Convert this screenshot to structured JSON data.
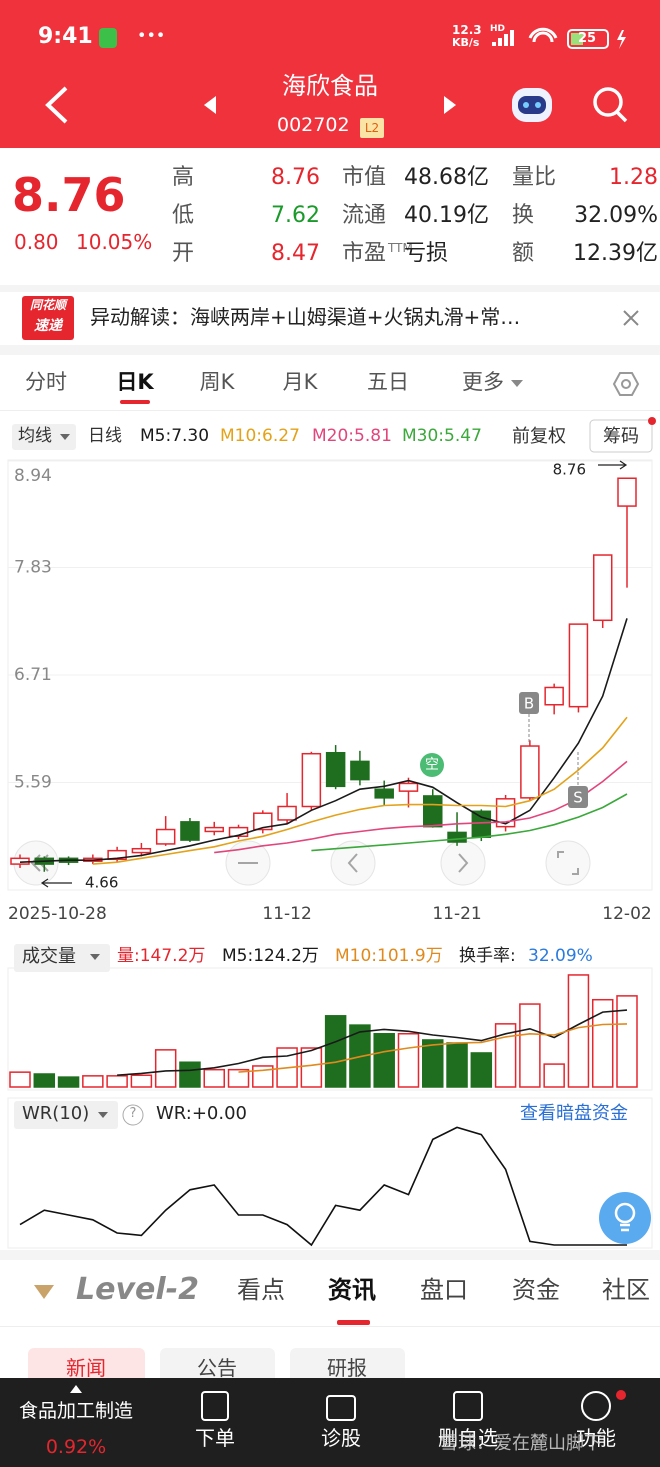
{
  "status_bar": {
    "time": "9:41",
    "speed": "12.3",
    "speed_unit": "KB/s",
    "network": "HD",
    "battery": "25"
  },
  "header": {
    "name": "海欣食品",
    "code": "002702",
    "badge": "L2"
  },
  "quote": {
    "price": "8.76",
    "change": "0.80",
    "change_pct": "10.05%",
    "stats": [
      [
        {
          "label": "高",
          "value": "8.76",
          "color": "#e5262e"
        },
        {
          "label": "市值",
          "value": "48.68亿"
        },
        {
          "label": "量比",
          "value": "1.28",
          "color": "#e5262e"
        }
      ],
      [
        {
          "label": "低",
          "value": "7.62",
          "color": "#1a9a2a"
        },
        {
          "label": "流通",
          "value": "40.19亿"
        },
        {
          "label": "换",
          "value": "32.09%"
        }
      ],
      [
        {
          "label": "开",
          "value": "8.47",
          "color": "#e5262e"
        },
        {
          "label": "市盈",
          "sup": "TTM",
          "value": "亏损"
        },
        {
          "label": "额",
          "value": "12.39亿"
        }
      ]
    ]
  },
  "news_ticker": {
    "logo_top": "同花顺",
    "logo_bottom": "速递",
    "text": "异动解读：海峡两岸+山姆渠道+火锅丸滑+常…"
  },
  "chart_tabs": {
    "items": [
      "分时",
      "日K",
      "周K",
      "月K",
      "五日",
      "更多"
    ],
    "active": "日K"
  },
  "kline": {
    "type": "candlestick",
    "toolbar": {
      "ma_button": "均线",
      "period": "日线",
      "adjust": "前复权",
      "chips": "筹码"
    },
    "categories": [
      "2025-10-28",
      null,
      null,
      null,
      null,
      null,
      null,
      null,
      null,
      null,
      null,
      "11-12",
      null,
      null,
      null,
      null,
      null,
      null,
      "11-21",
      null,
      null,
      null,
      null,
      null,
      null,
      "12-02"
    ],
    "open": [
      4.74,
      4.8,
      4.8,
      4.77,
      4.79,
      4.86,
      4.95,
      5.18,
      5.08,
      5.03,
      5.1,
      5.2,
      5.34,
      5.9,
      5.81,
      5.52,
      5.5,
      5.45,
      5.07,
      5.29,
      5.13,
      5.43,
      6.4,
      6.38,
      7.28,
      8.47
    ],
    "high": [
      4.84,
      4.82,
      4.82,
      4.84,
      4.92,
      4.96,
      5.24,
      5.22,
      5.18,
      5.15,
      5.3,
      5.48,
      5.91,
      5.98,
      5.92,
      5.61,
      5.64,
      5.52,
      5.28,
      5.31,
      5.46,
      6.03,
      6.62,
      7.24,
      7.96,
      8.76
    ],
    "low": [
      4.7,
      4.66,
      4.73,
      4.74,
      4.76,
      4.82,
      4.93,
      4.97,
      5.04,
      5.0,
      5.06,
      5.16,
      5.3,
      5.52,
      5.56,
      5.35,
      5.33,
      5.12,
      4.93,
      4.98,
      5.08,
      5.4,
      6.3,
      6.32,
      7.2,
      7.62
    ],
    "close": [
      4.8,
      4.74,
      4.76,
      4.8,
      4.88,
      4.9,
      5.1,
      4.99,
      5.12,
      5.12,
      5.27,
      5.34,
      5.89,
      5.55,
      5.62,
      5.43,
      5.58,
      5.13,
      4.97,
      5.02,
      5.42,
      5.97,
      6.58,
      7.24,
      7.96,
      8.76
    ],
    "up_color": "#e5262e",
    "down_color": "#1f6e1f",
    "ylim": [
      4.47,
      8.95
    ],
    "yticks": [
      8.94,
      7.83,
      6.71,
      5.59
    ],
    "grid": true,
    "series": [
      {
        "name": "M5:7.30",
        "color": "#1a1a1a",
        "values": [
          4.76,
          4.77,
          4.78,
          4.78,
          4.8,
          4.83,
          4.88,
          4.93,
          4.99,
          5.04,
          5.12,
          5.16,
          5.3,
          5.4,
          5.52,
          5.55,
          5.61,
          5.54,
          5.38,
          5.23,
          5.16,
          5.3,
          5.64,
          6.0,
          6.49,
          7.3
        ]
      },
      {
        "name": "M10:6.27",
        "color": "#e3a21a",
        "values": [
          null,
          null,
          null,
          4.74,
          4.76,
          4.8,
          4.84,
          4.88,
          4.92,
          4.98,
          5.03,
          5.1,
          5.18,
          5.25,
          5.31,
          5.35,
          5.36,
          5.36,
          5.35,
          5.35,
          5.34,
          5.4,
          5.52,
          5.72,
          5.95,
          6.27
        ]
      },
      {
        "name": "M20:5.81",
        "color": "#e2457c",
        "values": [
          null,
          null,
          null,
          null,
          null,
          null,
          null,
          null,
          4.86,
          4.89,
          4.93,
          4.96,
          5.0,
          5.05,
          5.08,
          5.11,
          5.13,
          5.14,
          5.16,
          5.17,
          5.18,
          5.22,
          5.3,
          5.42,
          5.6,
          5.81
        ]
      },
      {
        "name": "M30:5.47",
        "color": "#3aa83a",
        "values": [
          null,
          null,
          null,
          null,
          null,
          null,
          null,
          null,
          null,
          null,
          null,
          null,
          4.88,
          4.9,
          4.92,
          4.94,
          4.96,
          4.98,
          5.0,
          5.02,
          5.05,
          5.09,
          5.15,
          5.23,
          5.33,
          5.47
        ]
      }
    ],
    "markers": {
      "buy": "B",
      "sell": "S",
      "short": "空"
    },
    "high_label": "8.76",
    "low_label": "4.66"
  },
  "volume": {
    "type": "bar",
    "selector": "成交量",
    "current_label": "量:147.2万",
    "current_color": "#e5262e",
    "turnover_label": "换手率:",
    "turnover_value": "32.09%",
    "ylim": [
      0,
      189
    ],
    "values": [
      24,
      21,
      16,
      18,
      18,
      19,
      60,
      40,
      28,
      28,
      34,
      63,
      63,
      115,
      100,
      86,
      86,
      76,
      71,
      55,
      102,
      134,
      37,
      181,
      141,
      147.2
    ],
    "series": [
      {
        "name": "M5:124.2万",
        "color": "#1a1a1a",
        "values": [
          null,
          null,
          null,
          null,
          19,
          22,
          26,
          27,
          31,
          38,
          48,
          50,
          59,
          73,
          89,
          93,
          90,
          84,
          80,
          75,
          86,
          94,
          80,
          101,
          121,
          124.2
        ]
      },
      {
        "name": "M10:101.9万",
        "color": "#e08a1e",
        "values": [
          null,
          null,
          null,
          null,
          null,
          null,
          null,
          null,
          null,
          24,
          27,
          31,
          35,
          40,
          49,
          57,
          63,
          68,
          71,
          72,
          81,
          86,
          84,
          96,
          101,
          101.9
        ]
      }
    ]
  },
  "wr": {
    "type": "line",
    "selector": "WR(10)",
    "help": "?",
    "legend": "WR:+0.00",
    "link": "查看暗盘资金",
    "ylim": [
      0,
      100
    ],
    "color": "#111",
    "values": [
      17,
      29,
      25,
      21,
      10,
      8,
      29,
      46,
      50,
      25,
      25,
      17,
      0,
      33,
      29,
      50,
      42,
      88,
      98,
      92,
      63,
      3,
      0,
      0,
      0,
      0
    ]
  },
  "bottom_tabs": {
    "logo": "Level-2",
    "items": [
      "看点",
      "资讯",
      "盘口",
      "资金",
      "社区"
    ],
    "active": "资讯"
  },
  "sub_tabs": {
    "items": [
      "新闻",
      "公告",
      "研报"
    ],
    "active": "新闻"
  },
  "bottom_bar": {
    "sector": "食品加工制造",
    "sector_change": "0.92%",
    "items": [
      "下单",
      "诊股",
      "删自选",
      "功能"
    ]
  },
  "watermark": "雪球：爱在麓山脚下"
}
